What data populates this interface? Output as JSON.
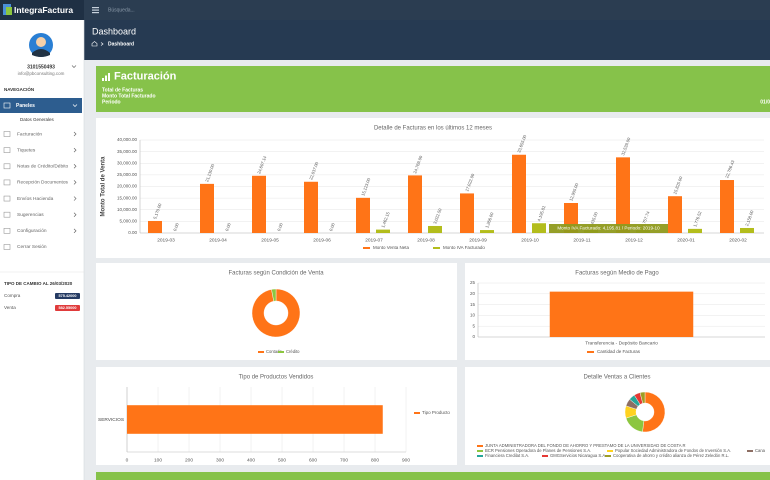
{
  "sidebar": {
    "brand": "IntegraFactura",
    "user_id": "3101550493",
    "email": "info@pbconsulting.com",
    "nav_heading": "NAVEGACIÓN",
    "menu": [
      "Paneles",
      "Facturación",
      "Tiquetes",
      "Notas de Crédito/Débito",
      "Recepción Documentos",
      "Envíos Hacienda",
      "Sugerencias",
      "Configuración",
      "Cerrar Sesión"
    ],
    "submenu": "Datos Generales",
    "exchange": {
      "title": "TIPO DE CAMBIO AL 26/03/2020",
      "rows": [
        {
          "label": "Compra",
          "value": "575.42000"
        },
        {
          "label": "Venta",
          "value": "582.55000"
        }
      ]
    }
  },
  "topbar": {
    "search": "Búsqueda..."
  },
  "header": {
    "title": "Dashboard",
    "breadcrumb": "Dashboard"
  },
  "banner": {
    "title": "Facturación",
    "lines": [
      "Total de Facturas",
      "Monto Total Facturado",
      "Periodo"
    ],
    "right": "01/0"
  },
  "chart_data": [
    {
      "type": "bar",
      "title": "Detalle de Facturas en los últimos 12 meses",
      "y_label": "Monto Total de Venta",
      "categories": [
        "2019-03",
        "2019-04",
        "2019-05",
        "2019-06",
        "2019-07",
        "2019-08",
        "2019-09",
        "2019-10",
        "2019-11",
        "2019-12",
        "2020-01",
        "2020-02"
      ],
      "series": [
        {
          "name": "Monto Venta Neta",
          "color": "#ff7417",
          "values": [
            5170,
            21130,
            24607.14,
            22037,
            15123,
            24769,
            17022,
            33655,
            12905,
            32539,
            15825,
            22786.43
          ],
          "value_labels": [
            "5,170.00",
            "21,130.00",
            "24,607.14",
            "22,037.00",
            "15,123.00",
            "24,769.00",
            "17,022.00",
            "33,655.00",
            "12,905.00",
            "32,539.00",
            "15,825.00",
            "22,786.43"
          ]
        },
        {
          "name": "Monto IVA Facturado",
          "color": "#b3bd1c",
          "values": [
            0,
            0,
            0,
            0,
            1462.15,
            3022.5,
            1266,
            4195.81,
            1435,
            1757.74,
            1776.52,
            2158
          ],
          "value_labels": [
            "0.00",
            "0.00",
            "0.00",
            "0.00",
            "1,462.15",
            "3,022.50",
            "1,266.00",
            "4,195.81",
            "1,435.00",
            "1,757.74",
            "1,776.52",
            "2,158.00"
          ]
        }
      ],
      "ylim": [
        0,
        40000
      ],
      "yticks": [
        {
          "value": 0,
          "label": "0.00"
        },
        {
          "value": 5000,
          "label": "5,000.00"
        },
        {
          "value": 10000,
          "label": "10,000.00"
        },
        {
          "value": 15000,
          "label": "15,000.00"
        },
        {
          "value": 20000,
          "label": "20,000.00"
        },
        {
          "value": 25000,
          "label": "25,000.00"
        },
        {
          "value": 30000,
          "label": "30,000.00"
        },
        {
          "value": 35000,
          "label": "35,000.00"
        },
        {
          "value": 40000,
          "label": "40,000.00"
        }
      ],
      "grid": true,
      "tooltip": "Monto IVA Facturado: 4,195.81 / Periodo: 2019-10"
    },
    {
      "type": "pie",
      "title": "Facturas según Condición de Venta",
      "categories": [
        "Contado",
        "Crédito"
      ],
      "values": [
        97,
        3
      ],
      "colors": [
        "#ff7417",
        "#8cc63f"
      ]
    },
    {
      "type": "bar",
      "title": "Facturas según Medio de Pago",
      "categories": [
        "Transferencia - Depósito Bancario"
      ],
      "series": [
        {
          "name": "Cantidad de Facturas",
          "color": "#ff7417",
          "values": [
            21
          ]
        }
      ],
      "ylim": [
        0,
        25
      ],
      "yticks": [
        0,
        5,
        10,
        15,
        20,
        25
      ],
      "grid": true
    },
    {
      "type": "hbar",
      "title": "Tipo de Productos Vendidos",
      "categories": [
        "SERVICIOS"
      ],
      "series": [
        {
          "name": "Tipo Producto",
          "color": "#ff7417",
          "values": [
            825
          ]
        }
      ],
      "xlim": [
        0,
        900
      ],
      "xticks": [
        0,
        100,
        200,
        300,
        400,
        500,
        600,
        700,
        800,
        900
      ],
      "grid": true
    },
    {
      "type": "pie",
      "title": "Detalle Ventas a Clientes",
      "categories": [
        "JUNTA ADMINISTRADORA DEL FONDO DE AHORRO Y PRESTAMO DE LA UNIVERSIDAD DE COSTA R",
        "BCR Pensiones Operadora de Planes de Pensiones S.A.",
        "Popular Sociedad Administradora de Fondos de Inversión S.A.",
        "Cana",
        "Financiera Credilat S.A.",
        "GMGServicios Nicaragua S.A.",
        "Cooperativa de ahorro y crédito alianza de Pérez Zeledón R.L."
      ],
      "values": [
        52,
        18,
        10,
        6,
        5,
        5,
        4
      ],
      "colors": [
        "#ff7417",
        "#8cc63f",
        "#ffd21f",
        "#8d6e63",
        "#26a69a",
        "#e53935",
        "#9e9d24"
      ]
    }
  ]
}
